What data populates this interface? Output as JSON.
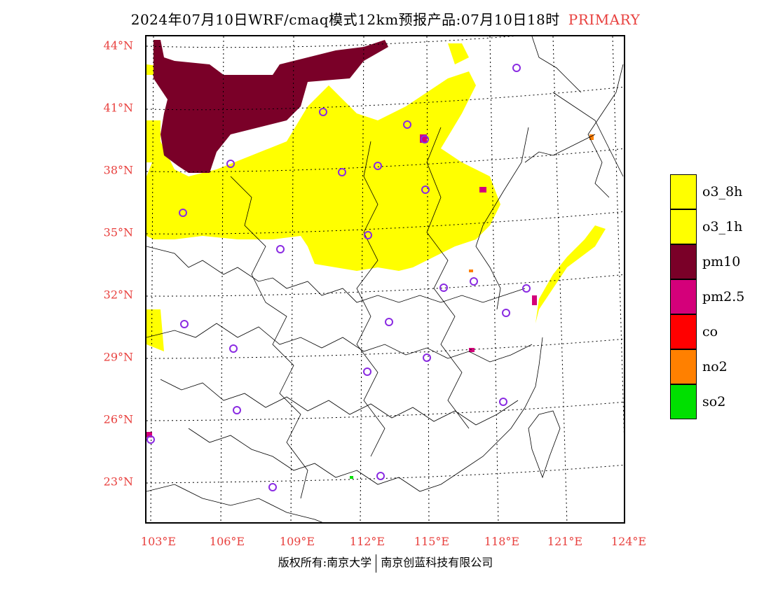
{
  "header": {
    "title": "2024年07月10日WRF/cmaq模式12km预报产品:07月10日18时",
    "tag": "PRIMARY"
  },
  "axes": {
    "lat_labels": [
      "44°N",
      "41°N",
      "38°N",
      "35°N",
      "32°N",
      "29°N",
      "26°N",
      "23°N"
    ],
    "lon_labels": [
      "103°E",
      "106°E",
      "109°E",
      "112°E",
      "115°E",
      "118°E",
      "121°E",
      "124°E"
    ]
  },
  "legend": [
    {
      "label": "o3_8h",
      "color": "#ffff00"
    },
    {
      "label": "o3_1h",
      "color": "#ffff00"
    },
    {
      "label": "pm10",
      "color": "#7a0028"
    },
    {
      "label": "pm2.5",
      "color": "#d4007a"
    },
    {
      "label": "co",
      "color": "#ff0000"
    },
    {
      "label": "no2",
      "color": "#ff8000"
    },
    {
      "label": "so2",
      "color": "#00e000"
    }
  ],
  "footer": {
    "left": "版权所有:南京大学",
    "right": "南京创蓝科技有限公司"
  }
}
